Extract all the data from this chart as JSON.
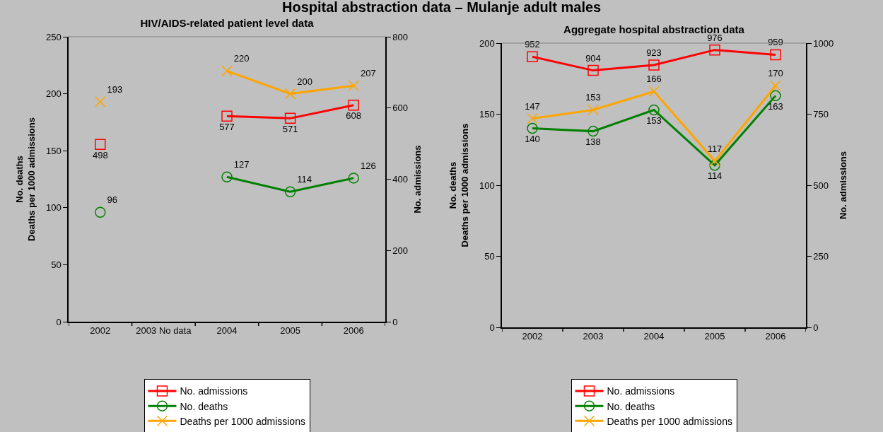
{
  "chart_data": [
    {
      "type": "line",
      "title": "HIV/AIDS-related patient level data",
      "ylabel": "No. deaths\nDeaths per 1000 admissions",
      "y2label": "No. admissions",
      "categories": [
        "2002",
        "2003 No data",
        "2004",
        "2005",
        "2006"
      ],
      "series": [
        {
          "name": "No. admissions",
          "color": "#ff0000",
          "marker": "square",
          "axis": "y2",
          "values": [
            498,
            null,
            577,
            571,
            608
          ]
        },
        {
          "name": "No. deaths",
          "color": "#008000",
          "marker": "circle",
          "axis": "y",
          "values": [
            96,
            null,
            127,
            114,
            126
          ]
        },
        {
          "name": "Deaths per 1000 admissions",
          "color": "#ffa500",
          "marker": "cross",
          "axis": "y",
          "values": [
            193,
            null,
            220,
            200,
            207
          ]
        }
      ],
      "ylim": [
        0,
        250
      ],
      "yticks": [
        0,
        50,
        100,
        150,
        200,
        250
      ],
      "y2lim": [
        0,
        800
      ],
      "y2ticks": [
        0,
        200,
        400,
        600,
        800
      ],
      "grid": false,
      "data_labels": true,
      "legend": "bottom",
      "annotations": [
        "Hospital abstraction data – Mulanje adult males"
      ]
    },
    {
      "type": "line",
      "title": "Aggregate hospital abstraction data",
      "ylabel": "No. deaths\nDeaths per 1000 admissions",
      "y2label": "No. admissions",
      "categories": [
        "2002",
        "2003",
        "2004",
        "2005",
        "2006"
      ],
      "series": [
        {
          "name": "No. admissions",
          "color": "#ff0000",
          "marker": "square",
          "axis": "y2",
          "values": [
            952,
            904,
            923,
            976,
            959
          ]
        },
        {
          "name": "No. deaths",
          "color": "#008000",
          "marker": "circle",
          "axis": "y",
          "values": [
            140,
            138,
            153,
            114,
            163
          ]
        },
        {
          "name": "Deaths per 1000 admissions",
          "color": "#ffa500",
          "marker": "cross",
          "axis": "y",
          "values": [
            147,
            153,
            166,
            117,
            170
          ]
        }
      ],
      "ylim": [
        0,
        200
      ],
      "yticks": [
        0,
        50,
        100,
        150,
        200
      ],
      "y2lim": [
        0,
        1000
      ],
      "y2ticks": [
        0,
        250,
        500,
        750,
        1000
      ],
      "grid": false,
      "data_labels": true,
      "legend": "bottom"
    }
  ]
}
